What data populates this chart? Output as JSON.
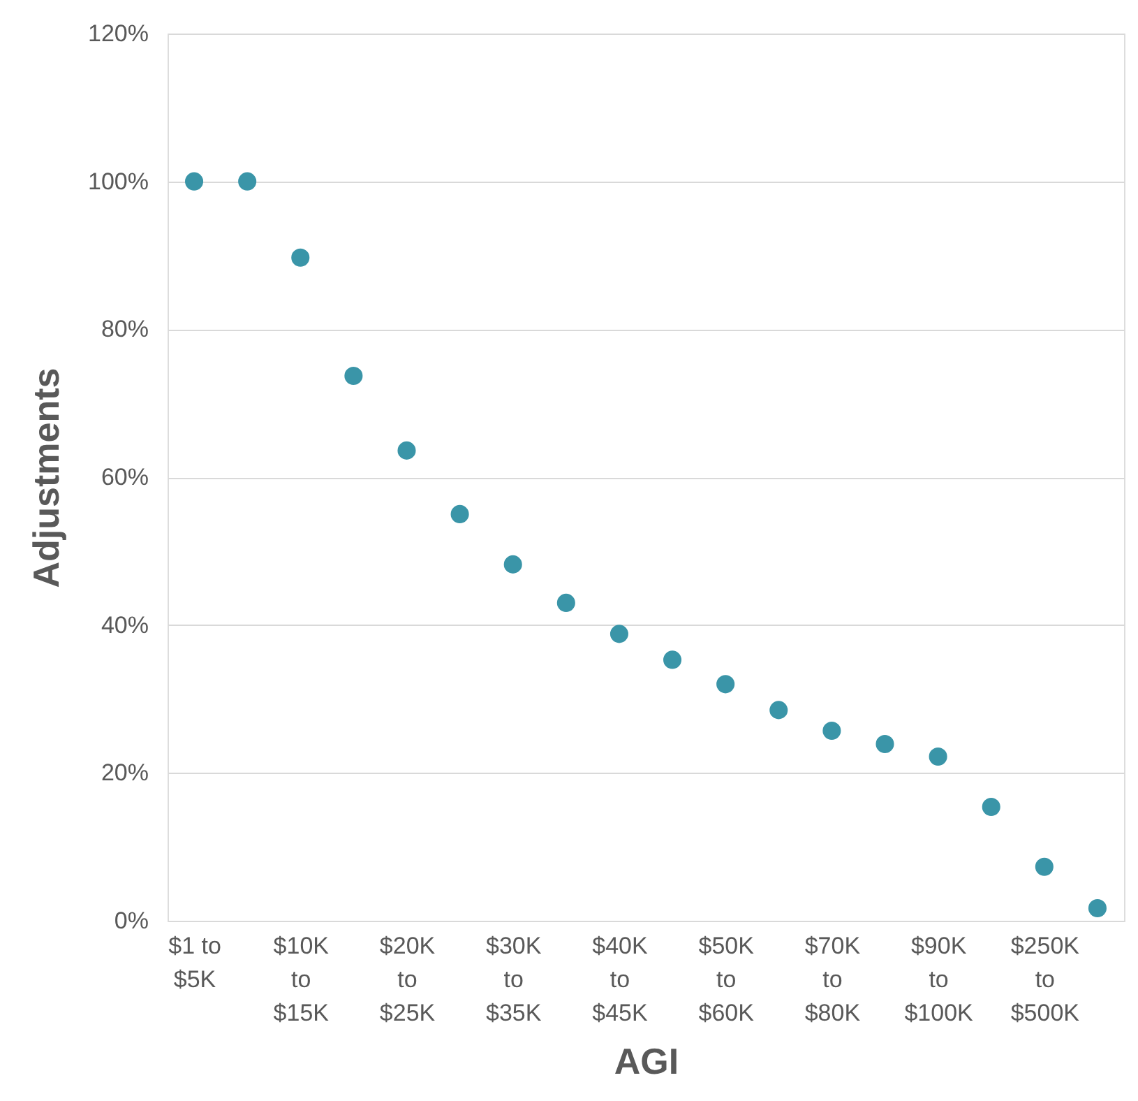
{
  "chart_data": {
    "type": "scatter",
    "xlabel": "AGI",
    "ylabel": "Adjustments",
    "categories": [
      "$1 to $5K",
      null,
      "$10K to $15K",
      null,
      "$20K to $25K",
      null,
      "$30K to $35K",
      null,
      "$40K to $45K",
      null,
      "$50K to $60K",
      null,
      "$70K to $80K",
      null,
      "$90K to $100K",
      null,
      "$250K to $500K",
      null
    ],
    "series": [
      {
        "color": "#3a95a8",
        "values": [
          100,
          100,
          89.7,
          73.7,
          63.6,
          55.0,
          48.2,
          43.0,
          38.8,
          35.3,
          32.0,
          28.5,
          25.7,
          23.9,
          22.2,
          15.4,
          7.3,
          1.7
        ]
      }
    ],
    "ylim": [
      0,
      120
    ],
    "yticks": [
      {
        "value": 0,
        "label": "0%"
      },
      {
        "value": 20,
        "label": "20%"
      },
      {
        "value": 40,
        "label": "40%"
      },
      {
        "value": 60,
        "label": "60%"
      },
      {
        "value": 80,
        "label": "80%"
      },
      {
        "value": 100,
        "label": "100%"
      },
      {
        "value": 120,
        "label": "120%"
      }
    ],
    "grid": "y",
    "marker": "circle",
    "legend": false
  }
}
